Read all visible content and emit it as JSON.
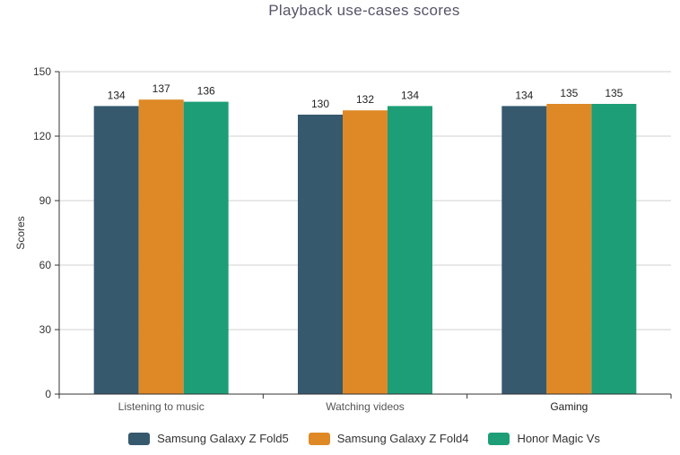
{
  "chart_data": {
    "type": "bar",
    "title": "Playback use-cases scores",
    "xlabel": "",
    "ylabel": "Scores",
    "ylim": [
      0,
      150
    ],
    "yticks": [
      0,
      30,
      60,
      90,
      120,
      150
    ],
    "grid": true,
    "legend_position": "bottom",
    "categories": [
      "Listening to music",
      "Watching videos",
      "Gaming"
    ],
    "series": [
      {
        "name": "Samsung Galaxy Z Fold5",
        "color": "#36596e",
        "values": [
          134,
          130,
          134
        ]
      },
      {
        "name": "Samsung Galaxy Z Fold4",
        "color": "#de8926",
        "values": [
          137,
          132,
          135
        ]
      },
      {
        "name": "Honor Magic Vs",
        "color": "#1d9e76",
        "values": [
          136,
          134,
          135
        ]
      }
    ]
  }
}
